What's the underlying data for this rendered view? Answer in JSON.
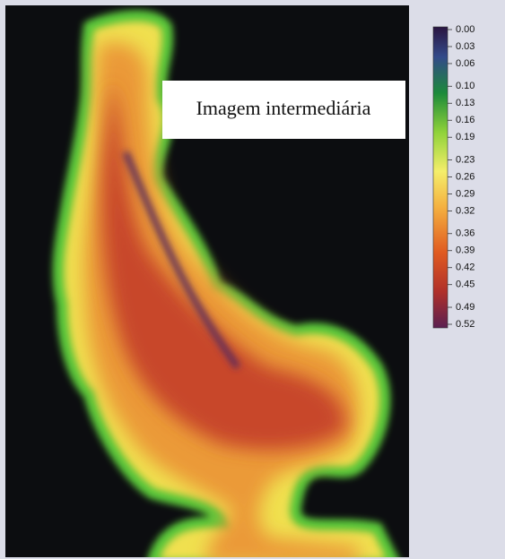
{
  "label": "Imagem intermediária",
  "colorbar": {
    "ticks": [
      {
        "value": 0,
        "label": "0.00"
      },
      0.03,
      0.06,
      {
        "value": 0.1,
        "label": "0.10"
      },
      0.13,
      0.16,
      0.19,
      0.23,
      0.26,
      0.29,
      0.32,
      0.36,
      0.39,
      0.42,
      0.45,
      0.49,
      0.52
    ]
  }
}
